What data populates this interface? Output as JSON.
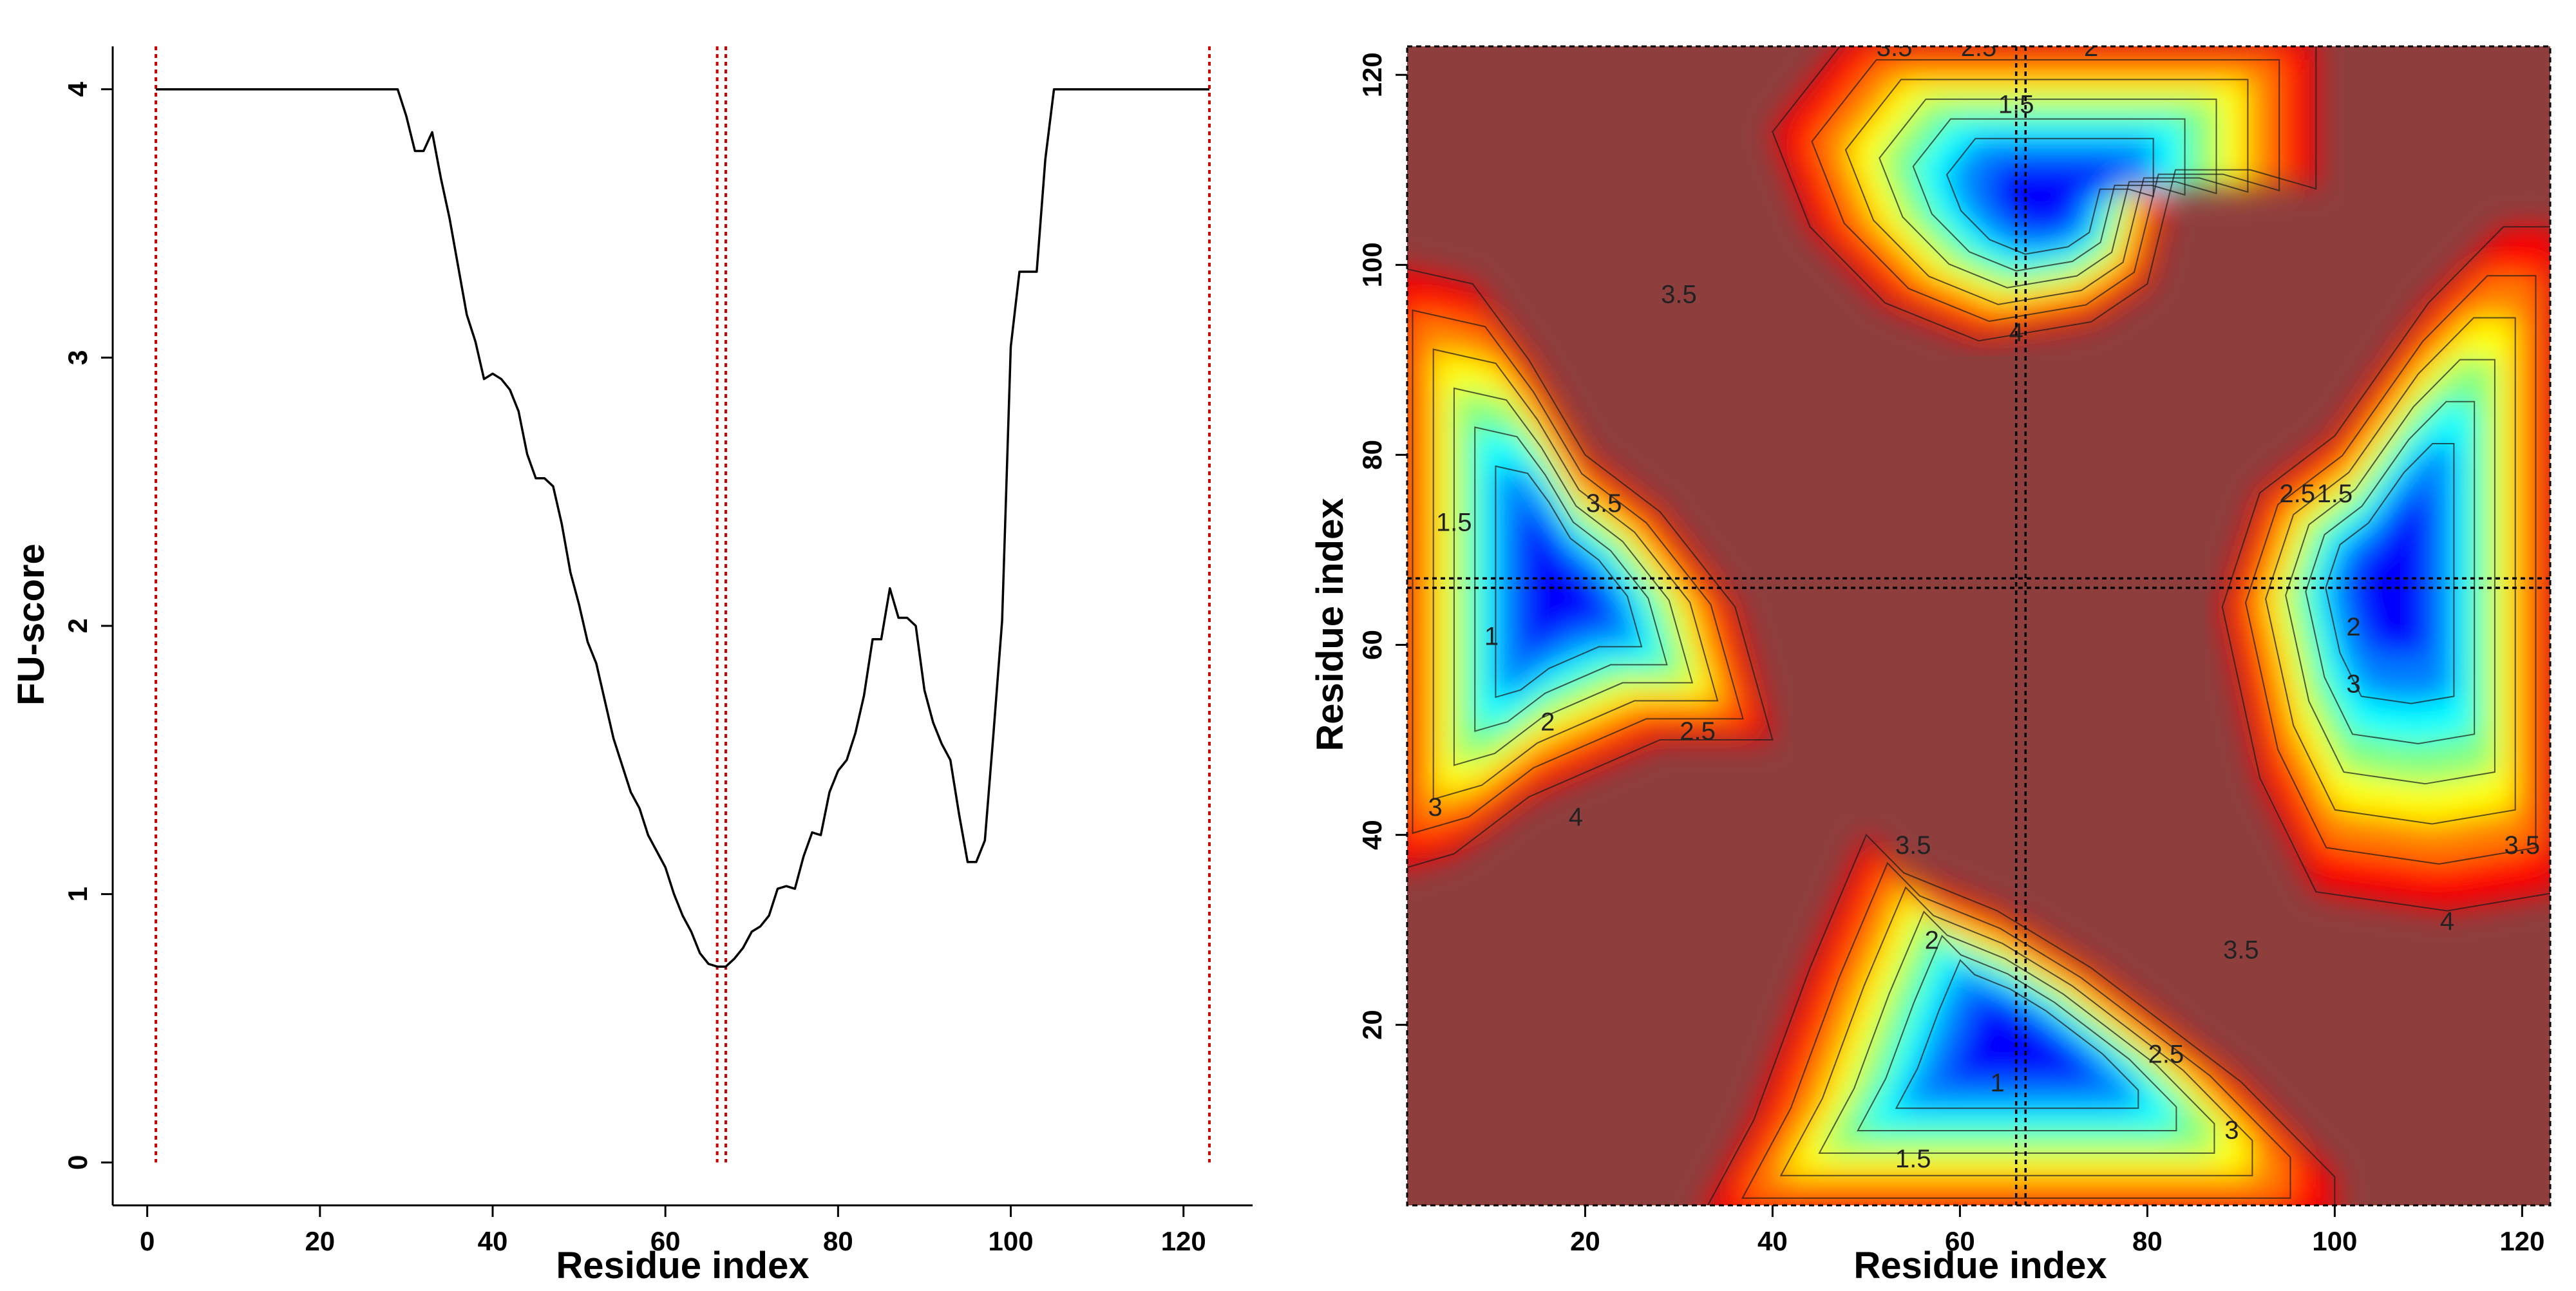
{
  "chart_data": [
    {
      "type": "line",
      "xlabel": "Residue index",
      "ylabel": "FU-score",
      "xlim": [
        -4,
        128
      ],
      "ylim": [
        -0.16,
        4.16
      ],
      "x_ticks": [
        0,
        20,
        40,
        60,
        80,
        100,
        120
      ],
      "y_ticks": [
        0,
        1,
        2,
        3,
        4
      ],
      "grid": false,
      "line_color": "#000000",
      "marker_color": "#cc0000",
      "series": [
        {
          "x": [
            1,
            29,
            30,
            31,
            32,
            33,
            34,
            35,
            36,
            37,
            38,
            39,
            40,
            41,
            42,
            43,
            44,
            45,
            46,
            47,
            48,
            49,
            50,
            51,
            52,
            53,
            54,
            55,
            56,
            57,
            58,
            59,
            60,
            61,
            62,
            63,
            64,
            65,
            66,
            67,
            68,
            69,
            70,
            71,
            72,
            73,
            74,
            75,
            76,
            77,
            78,
            79,
            80,
            81,
            82,
            83,
            84,
            85,
            86,
            87,
            88,
            89,
            90,
            91,
            92,
            93,
            94,
            95,
            96,
            97,
            98,
            99,
            100,
            101,
            102,
            103,
            104,
            105,
            123
          ],
          "values": [
            4.0,
            4.0,
            3.9,
            3.77,
            3.77,
            3.84,
            3.67,
            3.52,
            3.34,
            3.16,
            3.06,
            2.92,
            2.94,
            2.92,
            2.88,
            2.8,
            2.64,
            2.55,
            2.55,
            2.52,
            2.38,
            2.2,
            2.08,
            1.94,
            1.86,
            1.72,
            1.58,
            1.48,
            1.38,
            1.32,
            1.22,
            1.16,
            1.1,
            1.0,
            0.92,
            0.86,
            0.78,
            0.74,
            0.73,
            0.73,
            0.76,
            0.8,
            0.86,
            0.88,
            0.92,
            1.02,
            1.03,
            1.02,
            1.14,
            1.23,
            1.22,
            1.38,
            1.46,
            1.5,
            1.6,
            1.74,
            1.95,
            1.95,
            2.14,
            2.03,
            2.03,
            2.0,
            1.76,
            1.64,
            1.56,
            1.5,
            1.3,
            1.12,
            1.12,
            1.2,
            1.6,
            2.02,
            3.04,
            3.32,
            3.32,
            3.32,
            3.74,
            4.0,
            4.0
          ]
        }
      ],
      "vlines": [
        1,
        66,
        67,
        123
      ]
    },
    {
      "type": "heatmap",
      "xlabel": "Residue index",
      "ylabel": "Residue index",
      "xlim": [
        1,
        123
      ],
      "ylim": [
        1,
        123
      ],
      "x_ticks": [
        20,
        40,
        60,
        80,
        100,
        120
      ],
      "y_ticks": [
        20,
        40,
        60,
        80,
        100,
        120
      ],
      "colormap": [
        "#00007f",
        "#0000ff",
        "#007fff",
        "#00ffff",
        "#7fff7f",
        "#ffff00",
        "#ff7f00",
        "#ff0000",
        "#7f0000"
      ],
      "background_color": "#8f3e3e",
      "value_range": [
        0,
        4
      ],
      "contour_labels": [
        {
          "text": "3.5",
          "x": 53,
          "y": 122
        },
        {
          "text": "2.5",
          "x": 62,
          "y": 122
        },
        {
          "text": "2",
          "x": 74,
          "y": 122
        },
        {
          "text": "1.5",
          "x": 66,
          "y": 116
        },
        {
          "text": "3.5",
          "x": 30,
          "y": 96
        },
        {
          "text": "4",
          "x": 66,
          "y": 92
        },
        {
          "text": "1.5",
          "x": 6,
          "y": 72
        },
        {
          "text": "3.5",
          "x": 22,
          "y": 74
        },
        {
          "text": "1",
          "x": 10,
          "y": 60
        },
        {
          "text": "2",
          "x": 16,
          "y": 51
        },
        {
          "text": "2.5",
          "x": 32,
          "y": 50
        },
        {
          "text": "3",
          "x": 4,
          "y": 42
        },
        {
          "text": "4",
          "x": 19,
          "y": 41
        },
        {
          "text": "2.5",
          "x": 96,
          "y": 75
        },
        {
          "text": "1.5",
          "x": 100,
          "y": 75
        },
        {
          "text": "2",
          "x": 102,
          "y": 61
        },
        {
          "text": "3",
          "x": 102,
          "y": 55
        },
        {
          "text": "3.5",
          "x": 90,
          "y": 27
        },
        {
          "text": "4",
          "x": 112,
          "y": 30
        },
        {
          "text": "3.5",
          "x": 120,
          "y": 38
        },
        {
          "text": "3.5",
          "x": 55,
          "y": 38
        },
        {
          "text": "2",
          "x": 57,
          "y": 28
        },
        {
          "text": "1",
          "x": 64,
          "y": 13
        },
        {
          "text": "1.5",
          "x": 55,
          "y": 5
        },
        {
          "text": "2.5",
          "x": 82,
          "y": 16
        },
        {
          "text": "3",
          "x": 89,
          "y": 8
        }
      ],
      "hlines": [
        66,
        67
      ],
      "vlines": [
        66,
        67
      ]
    }
  ]
}
